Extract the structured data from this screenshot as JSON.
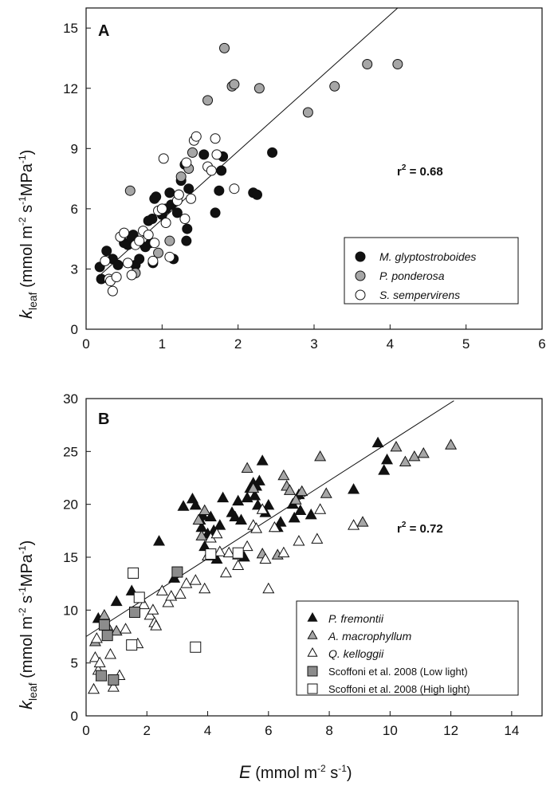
{
  "chart_data": [
    {
      "type": "scatter",
      "panel": "A",
      "ylabel_main": "k",
      "ylabel_sub": "leaf",
      "ylabel_units": "(mmol m",
      "ylabel_units_full": "(mmol m-2 s-1MPa-1)",
      "xlim": [
        0,
        6
      ],
      "ylim": [
        0,
        16
      ],
      "xticks": [
        0,
        1,
        2,
        3,
        4,
        5,
        6
      ],
      "yticks": [
        0,
        3,
        6,
        9,
        12,
        15
      ],
      "r2_label": "r",
      "r2_value": " = 0.68",
      "fit_line": {
        "x": [
          0.2,
          4.1
        ],
        "y": [
          2.75,
          16
        ]
      },
      "series": [
        {
          "name": "M. glyptostroboides",
          "marker": "circle",
          "fill": "#111111",
          "points": [
            [
              0.18,
              3.1
            ],
            [
              0.2,
              2.5
            ],
            [
              0.27,
              3.9
            ],
            [
              0.35,
              3.5
            ],
            [
              0.42,
              3.2
            ],
            [
              0.5,
              4.3
            ],
            [
              0.55,
              4.2
            ],
            [
              0.6,
              4.5
            ],
            [
              0.62,
              4.7
            ],
            [
              0.65,
              3.2
            ],
            [
              0.7,
              3.5
            ],
            [
              0.78,
              4.1
            ],
            [
              0.82,
              5.4
            ],
            [
              0.85,
              4.3
            ],
            [
              0.87,
              5.5
            ],
            [
              0.88,
              3.3
            ],
            [
              0.9,
              6.5
            ],
            [
              0.92,
              6.6
            ],
            [
              1.0,
              5.7
            ],
            [
              1.05,
              6.0
            ],
            [
              1.1,
              6.8
            ],
            [
              1.12,
              6.2
            ],
            [
              1.15,
              3.5
            ],
            [
              1.2,
              5.8
            ],
            [
              1.22,
              6.7
            ],
            [
              1.25,
              7.4
            ],
            [
              1.3,
              8.2
            ],
            [
              1.32,
              4.4
            ],
            [
              1.33,
              5.0
            ],
            [
              1.35,
              7.0
            ],
            [
              1.55,
              8.7
            ],
            [
              1.7,
              5.8
            ],
            [
              1.75,
              6.9
            ],
            [
              1.78,
              7.9
            ],
            [
              1.8,
              8.6
            ],
            [
              2.2,
              6.8
            ],
            [
              2.25,
              6.7
            ],
            [
              2.45,
              8.8
            ]
          ]
        },
        {
          "name": "P. ponderosa",
          "marker": "circle",
          "fill": "#a6a6a6",
          "points": [
            [
              0.58,
              6.9
            ],
            [
              0.65,
              2.8
            ],
            [
              0.95,
              3.8
            ],
            [
              1.1,
              4.4
            ],
            [
              1.25,
              7.6
            ],
            [
              1.35,
              8.0
            ],
            [
              1.4,
              8.8
            ],
            [
              1.6,
              11.4
            ],
            [
              1.82,
              14.0
            ],
            [
              1.92,
              12.1
            ],
            [
              1.95,
              12.2
            ],
            [
              2.28,
              12.0
            ],
            [
              2.92,
              10.8
            ],
            [
              3.27,
              12.1
            ],
            [
              3.7,
              13.2
            ],
            [
              4.1,
              13.2
            ]
          ]
        },
        {
          "name": "S. sempervirens",
          "marker": "circle",
          "fill": "#ffffff",
          "points": [
            [
              0.25,
              3.4
            ],
            [
              0.3,
              2.5
            ],
            [
              0.32,
              2.4
            ],
            [
              0.35,
              1.9
            ],
            [
              0.4,
              2.6
            ],
            [
              0.45,
              4.6
            ],
            [
              0.5,
              4.8
            ],
            [
              0.55,
              3.3
            ],
            [
              0.6,
              2.7
            ],
            [
              0.65,
              4.2
            ],
            [
              0.7,
              4.4
            ],
            [
              0.75,
              4.9
            ],
            [
              0.82,
              4.7
            ],
            [
              0.88,
              3.4
            ],
            [
              0.9,
              4.3
            ],
            [
              0.95,
              5.9
            ],
            [
              1.0,
              6.0
            ],
            [
              1.02,
              8.5
            ],
            [
              1.05,
              5.3
            ],
            [
              1.1,
              3.6
            ],
            [
              1.2,
              6.4
            ],
            [
              1.22,
              6.7
            ],
            [
              1.3,
              5.5
            ],
            [
              1.32,
              8.3
            ],
            [
              1.38,
              6.5
            ],
            [
              1.42,
              9.4
            ],
            [
              1.45,
              9.6
            ],
            [
              1.6,
              8.1
            ],
            [
              1.65,
              7.9
            ],
            [
              1.7,
              9.5
            ],
            [
              1.72,
              8.7
            ],
            [
              1.95,
              7.0
            ]
          ]
        }
      ]
    },
    {
      "type": "scatter",
      "panel": "B",
      "xlabel_main": "E",
      "xlabel_units": " (mmol m",
      "ylabel_main": "k",
      "ylabel_sub": "leaf",
      "xlim": [
        0,
        15
      ],
      "ylim": [
        0,
        30
      ],
      "xticks": [
        0,
        2,
        4,
        6,
        8,
        10,
        12,
        14
      ],
      "yticks": [
        0,
        5,
        10,
        15,
        20,
        25,
        30
      ],
      "r2_label": "r",
      "r2_value": " = 0.72",
      "fit_line": {
        "x": [
          0,
          12.1
        ],
        "y": [
          7.5,
          29.8
        ]
      },
      "series": [
        {
          "name": "P. fremontii",
          "marker": "triangle",
          "fill": "#111111",
          "points": [
            [
              0.4,
              9.2
            ],
            [
              1.0,
              10.8
            ],
            [
              1.5,
              11.8
            ],
            [
              2.4,
              16.5
            ],
            [
              2.9,
              13.0
            ],
            [
              3.2,
              19.8
            ],
            [
              3.5,
              20.5
            ],
            [
              3.6,
              19.9
            ],
            [
              3.75,
              18.5
            ],
            [
              3.8,
              17.8
            ],
            [
              3.85,
              18.9
            ],
            [
              3.9,
              16.0
            ],
            [
              4.0,
              17.2
            ],
            [
              4.1,
              18.8
            ],
            [
              4.2,
              17.5
            ],
            [
              4.3,
              14.8
            ],
            [
              4.4,
              18.0
            ],
            [
              4.5,
              20.6
            ],
            [
              4.8,
              19.2
            ],
            [
              4.9,
              18.8
            ],
            [
              5.0,
              20.3
            ],
            [
              5.1,
              18.5
            ],
            [
              5.2,
              15.0
            ],
            [
              5.3,
              20.6
            ],
            [
              5.4,
              21.5
            ],
            [
              5.5,
              22.0
            ],
            [
              5.55,
              20.8
            ],
            [
              5.6,
              21.7
            ],
            [
              5.65,
              19.9
            ],
            [
              5.7,
              22.2
            ],
            [
              5.8,
              24.1
            ],
            [
              5.9,
              19.2
            ],
            [
              6.0,
              19.9
            ],
            [
              6.3,
              17.8
            ],
            [
              6.4,
              18.3
            ],
            [
              6.8,
              20.0
            ],
            [
              6.85,
              18.7
            ],
            [
              7.0,
              20.9
            ],
            [
              7.05,
              19.4
            ],
            [
              7.4,
              19.0
            ],
            [
              8.8,
              21.4
            ],
            [
              9.6,
              25.8
            ],
            [
              9.8,
              23.2
            ],
            [
              9.9,
              24.2
            ]
          ]
        },
        {
          "name": "A. macrophyllum",
          "marker": "triangle",
          "fill": "#a6a6a6",
          "points": [
            [
              0.3,
              7.0
            ],
            [
              0.6,
              9.5
            ],
            [
              0.7,
              8.5
            ],
            [
              1.0,
              8.0
            ],
            [
              3.7,
              18.5
            ],
            [
              3.8,
              17.0
            ],
            [
              3.9,
              19.4
            ],
            [
              5.0,
              15.2
            ],
            [
              5.3,
              23.4
            ],
            [
              5.5,
              21.5
            ],
            [
              5.8,
              15.3
            ],
            [
              6.3,
              15.2
            ],
            [
              6.5,
              22.7
            ],
            [
              6.6,
              21.7
            ],
            [
              6.7,
              21.3
            ],
            [
              6.9,
              20.4
            ],
            [
              7.1,
              21.2
            ],
            [
              7.7,
              24.5
            ],
            [
              7.9,
              21.0
            ],
            [
              9.1,
              18.3
            ],
            [
              10.2,
              25.4
            ],
            [
              10.5,
              24.0
            ],
            [
              10.8,
              24.5
            ],
            [
              11.1,
              24.8
            ],
            [
              12.0,
              25.6
            ]
          ]
        },
        {
          "name": "Q. kelloggii",
          "marker": "triangle",
          "fill": "#ffffff",
          "points": [
            [
              0.25,
              2.5
            ],
            [
              0.3,
              5.5
            ],
            [
              0.35,
              7.3
            ],
            [
              0.4,
              4.3
            ],
            [
              0.45,
              5.0
            ],
            [
              0.5,
              3.7
            ],
            [
              0.8,
              5.8
            ],
            [
              0.9,
              2.7
            ],
            [
              1.1,
              3.8
            ],
            [
              1.3,
              8.2
            ],
            [
              1.7,
              6.8
            ],
            [
              1.9,
              10.5
            ],
            [
              2.1,
              9.5
            ],
            [
              2.2,
              10.0
            ],
            [
              2.25,
              8.8
            ],
            [
              2.3,
              8.5
            ],
            [
              2.5,
              11.8
            ],
            [
              2.7,
              10.7
            ],
            [
              2.8,
              11.3
            ],
            [
              3.1,
              11.5
            ],
            [
              3.3,
              12.5
            ],
            [
              3.6,
              12.8
            ],
            [
              3.9,
              12.0
            ],
            [
              4.0,
              15.1
            ],
            [
              4.1,
              16.8
            ],
            [
              4.3,
              17.2
            ],
            [
              4.4,
              15.5
            ],
            [
              4.6,
              13.5
            ],
            [
              4.7,
              15.4
            ],
            [
              5.0,
              14.2
            ],
            [
              5.3,
              16.0
            ],
            [
              5.5,
              18.0
            ],
            [
              5.6,
              17.7
            ],
            [
              5.8,
              19.5
            ],
            [
              5.9,
              14.8
            ],
            [
              6.0,
              12.0
            ],
            [
              6.2,
              17.8
            ],
            [
              6.5,
              15.4
            ],
            [
              7.0,
              16.5
            ],
            [
              7.6,
              16.7
            ],
            [
              7.7,
              19.5
            ],
            [
              8.8,
              18.0
            ]
          ]
        },
        {
          "name": "Scoffoni et al. 2008 (Low light)",
          "marker": "square",
          "fill": "#8c8c8c",
          "points": [
            [
              0.5,
              3.8
            ],
            [
              0.6,
              8.6
            ],
            [
              0.7,
              7.6
            ],
            [
              0.9,
              3.4
            ],
            [
              1.6,
              9.8
            ],
            [
              3.0,
              13.6
            ]
          ]
        },
        {
          "name": "Scoffoni et al. 2008 (High light)",
          "marker": "square",
          "fill": "#ffffff",
          "points": [
            [
              1.5,
              6.7
            ],
            [
              1.55,
              13.5
            ],
            [
              1.75,
              11.2
            ],
            [
              3.6,
              6.5
            ],
            [
              4.1,
              15.3
            ],
            [
              5.0,
              15.4
            ]
          ]
        }
      ]
    }
  ]
}
